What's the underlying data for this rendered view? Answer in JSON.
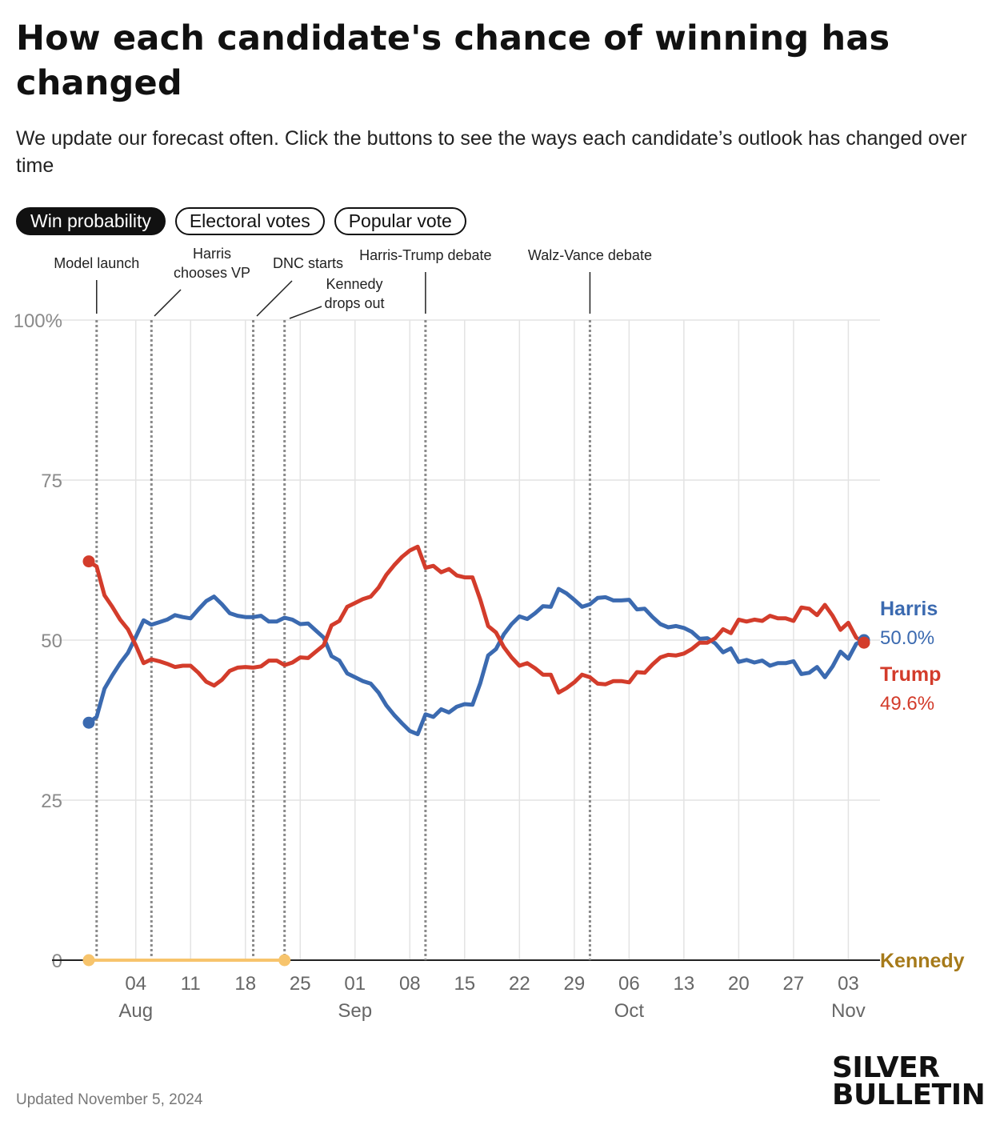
{
  "title": "How each candidate's chance of winning has changed",
  "subtitle": "We update our forecast often. Click the buttons to see the ways each candidate’s outlook has changed over time",
  "tabs": [
    {
      "label": "Win probability",
      "active": true
    },
    {
      "label": "Electoral votes",
      "active": false
    },
    {
      "label": "Popular vote",
      "active": false
    }
  ],
  "footer": {
    "updated": "Updated November 5, 2024"
  },
  "brand": {
    "line1": "SILVER",
    "line2": "BULLETIN"
  },
  "chart_data": {
    "type": "line",
    "ylim": [
      0,
      100
    ],
    "y_ticks": [
      {
        "value": 0,
        "label": "0"
      },
      {
        "value": 25,
        "label": "25"
      },
      {
        "value": 50,
        "label": "50"
      },
      {
        "value": 75,
        "label": "75"
      },
      {
        "value": 100,
        "label": "100%"
      }
    ],
    "x_range": [
      "2024-07-29",
      "2024-11-05"
    ],
    "x_ticks": [
      {
        "date": "2024-08-04",
        "label": "04",
        "month": "Aug"
      },
      {
        "date": "2024-08-11",
        "label": "11"
      },
      {
        "date": "2024-08-18",
        "label": "18"
      },
      {
        "date": "2024-08-25",
        "label": "25"
      },
      {
        "date": "2024-09-01",
        "label": "01",
        "month": "Sep"
      },
      {
        "date": "2024-09-08",
        "label": "08"
      },
      {
        "date": "2024-09-15",
        "label": "15"
      },
      {
        "date": "2024-09-22",
        "label": "22"
      },
      {
        "date": "2024-09-29",
        "label": "29"
      },
      {
        "date": "2024-10-06",
        "label": "06",
        "month": "Oct"
      },
      {
        "date": "2024-10-13",
        "label": "13"
      },
      {
        "date": "2024-10-20",
        "label": "20"
      },
      {
        "date": "2024-10-27",
        "label": "27"
      },
      {
        "date": "2024-11-03",
        "label": "03",
        "month": "Nov"
      }
    ],
    "grid": true,
    "legend": "right-end-labels",
    "events": [
      {
        "date": "2024-07-30",
        "lines": [
          "Model launch"
        ]
      },
      {
        "date": "2024-08-06",
        "lines": [
          "Harris",
          "chooses VP"
        ]
      },
      {
        "date": "2024-08-19",
        "lines": [
          "DNC starts"
        ]
      },
      {
        "date": "2024-08-23",
        "lines": [
          "Kennedy",
          "drops out"
        ]
      },
      {
        "date": "2024-09-10",
        "lines": [
          "Harris-Trump debate"
        ]
      },
      {
        "date": "2024-10-01",
        "lines": [
          "Walz-Vance debate"
        ]
      }
    ],
    "series": [
      {
        "name": "Harris",
        "color": "#3b6ab0",
        "end_label": "50.0%",
        "points": [
          [
            "2024-07-29",
            37.1
          ],
          [
            "2024-07-30",
            38.0
          ],
          [
            "2024-07-31",
            42.4
          ],
          [
            "2024-08-01",
            44.5
          ],
          [
            "2024-08-02",
            46.4
          ],
          [
            "2024-08-03",
            48.0
          ],
          [
            "2024-08-04",
            50.5
          ],
          [
            "2024-08-05",
            53.1
          ],
          [
            "2024-08-06",
            52.4
          ],
          [
            "2024-08-07",
            52.8
          ],
          [
            "2024-08-08",
            53.2
          ],
          [
            "2024-08-09",
            53.9
          ],
          [
            "2024-08-10",
            53.6
          ],
          [
            "2024-08-11",
            53.4
          ],
          [
            "2024-08-12",
            54.8
          ],
          [
            "2024-08-13",
            56.1
          ],
          [
            "2024-08-14",
            56.8
          ],
          [
            "2024-08-15",
            55.6
          ],
          [
            "2024-08-16",
            54.2
          ],
          [
            "2024-08-17",
            53.8
          ],
          [
            "2024-08-18",
            53.6
          ],
          [
            "2024-08-19",
            53.6
          ],
          [
            "2024-08-20",
            53.8
          ],
          [
            "2024-08-21",
            52.9
          ],
          [
            "2024-08-22",
            52.9
          ],
          [
            "2024-08-23",
            53.5
          ],
          [
            "2024-08-24",
            53.2
          ],
          [
            "2024-08-25",
            52.5
          ],
          [
            "2024-08-26",
            52.6
          ],
          [
            "2024-08-27",
            51.5
          ],
          [
            "2024-08-28",
            50.4
          ],
          [
            "2024-08-29",
            47.5
          ],
          [
            "2024-08-30",
            46.8
          ],
          [
            "2024-08-31",
            44.8
          ],
          [
            "2024-09-01",
            44.2
          ],
          [
            "2024-09-02",
            43.6
          ],
          [
            "2024-09-03",
            43.2
          ],
          [
            "2024-09-04",
            41.8
          ],
          [
            "2024-09-05",
            39.8
          ],
          [
            "2024-09-06",
            38.3
          ],
          [
            "2024-09-07",
            37.0
          ],
          [
            "2024-09-08",
            35.8
          ],
          [
            "2024-09-09",
            35.3
          ],
          [
            "2024-09-10",
            38.4
          ],
          [
            "2024-09-11",
            38.0
          ],
          [
            "2024-09-12",
            39.2
          ],
          [
            "2024-09-13",
            38.7
          ],
          [
            "2024-09-14",
            39.6
          ],
          [
            "2024-09-15",
            40.0
          ],
          [
            "2024-09-16",
            39.9
          ],
          [
            "2024-09-17",
            43.3
          ],
          [
            "2024-09-18",
            47.6
          ],
          [
            "2024-09-19",
            48.6
          ],
          [
            "2024-09-20",
            50.9
          ],
          [
            "2024-09-21",
            52.5
          ],
          [
            "2024-09-22",
            53.7
          ],
          [
            "2024-09-23",
            53.3
          ],
          [
            "2024-09-24",
            54.2
          ],
          [
            "2024-09-25",
            55.3
          ],
          [
            "2024-09-26",
            55.2
          ],
          [
            "2024-09-27",
            58.0
          ],
          [
            "2024-09-28",
            57.3
          ],
          [
            "2024-09-29",
            56.3
          ],
          [
            "2024-09-30",
            55.2
          ],
          [
            "2024-10-01",
            55.6
          ],
          [
            "2024-10-02",
            56.6
          ],
          [
            "2024-10-03",
            56.7
          ],
          [
            "2024-10-04",
            56.2
          ],
          [
            "2024-10-05",
            56.2
          ],
          [
            "2024-10-06",
            56.3
          ],
          [
            "2024-10-07",
            54.8
          ],
          [
            "2024-10-08",
            54.9
          ],
          [
            "2024-10-09",
            53.6
          ],
          [
            "2024-10-10",
            52.5
          ],
          [
            "2024-10-11",
            52.0
          ],
          [
            "2024-10-12",
            52.2
          ],
          [
            "2024-10-13",
            51.9
          ],
          [
            "2024-10-14",
            51.3
          ],
          [
            "2024-10-15",
            50.2
          ],
          [
            "2024-10-16",
            50.3
          ],
          [
            "2024-10-17",
            49.5
          ],
          [
            "2024-10-18",
            48.1
          ],
          [
            "2024-10-19",
            48.7
          ],
          [
            "2024-10-20",
            46.6
          ],
          [
            "2024-10-21",
            46.9
          ],
          [
            "2024-10-22",
            46.5
          ],
          [
            "2024-10-23",
            46.8
          ],
          [
            "2024-10-24",
            46.0
          ],
          [
            "2024-10-25",
            46.4
          ],
          [
            "2024-10-26",
            46.4
          ],
          [
            "2024-10-27",
            46.7
          ],
          [
            "2024-10-28",
            44.7
          ],
          [
            "2024-10-29",
            44.9
          ],
          [
            "2024-10-30",
            45.8
          ],
          [
            "2024-10-31",
            44.2
          ],
          [
            "2024-11-01",
            45.9
          ],
          [
            "2024-11-02",
            48.2
          ],
          [
            "2024-11-03",
            47.1
          ],
          [
            "2024-11-04",
            49.4
          ],
          [
            "2024-11-05",
            50.0
          ]
        ]
      },
      {
        "name": "Trump",
        "color": "#d33c2b",
        "end_label": "49.6%",
        "points": [
          [
            "2024-07-29",
            62.3
          ],
          [
            "2024-07-30",
            61.5
          ],
          [
            "2024-07-31",
            57.0
          ],
          [
            "2024-08-01",
            55.2
          ],
          [
            "2024-08-02",
            53.2
          ],
          [
            "2024-08-03",
            51.7
          ],
          [
            "2024-08-04",
            49.2
          ],
          [
            "2024-08-05",
            46.4
          ],
          [
            "2024-08-06",
            47.0
          ],
          [
            "2024-08-07",
            46.7
          ],
          [
            "2024-08-08",
            46.3
          ],
          [
            "2024-08-09",
            45.8
          ],
          [
            "2024-08-10",
            46.0
          ],
          [
            "2024-08-11",
            46.0
          ],
          [
            "2024-08-12",
            44.9
          ],
          [
            "2024-08-13",
            43.5
          ],
          [
            "2024-08-14",
            42.9
          ],
          [
            "2024-08-15",
            43.8
          ],
          [
            "2024-08-16",
            45.2
          ],
          [
            "2024-08-17",
            45.7
          ],
          [
            "2024-08-18",
            45.8
          ],
          [
            "2024-08-19",
            45.7
          ],
          [
            "2024-08-20",
            45.9
          ],
          [
            "2024-08-21",
            46.8
          ],
          [
            "2024-08-22",
            46.8
          ],
          [
            "2024-08-23",
            46.1
          ],
          [
            "2024-08-24",
            46.5
          ],
          [
            "2024-08-25",
            47.3
          ],
          [
            "2024-08-26",
            47.2
          ],
          [
            "2024-08-27",
            48.2
          ],
          [
            "2024-08-28",
            49.2
          ],
          [
            "2024-08-29",
            52.3
          ],
          [
            "2024-08-30",
            53.0
          ],
          [
            "2024-08-31",
            55.2
          ],
          [
            "2024-09-01",
            55.8
          ],
          [
            "2024-09-02",
            56.4
          ],
          [
            "2024-09-03",
            56.8
          ],
          [
            "2024-09-04",
            58.2
          ],
          [
            "2024-09-05",
            60.2
          ],
          [
            "2024-09-06",
            61.7
          ],
          [
            "2024-09-07",
            63.0
          ],
          [
            "2024-09-08",
            64.0
          ],
          [
            "2024-09-09",
            64.6
          ],
          [
            "2024-09-10",
            61.3
          ],
          [
            "2024-09-11",
            61.6
          ],
          [
            "2024-09-12",
            60.6
          ],
          [
            "2024-09-13",
            61.1
          ],
          [
            "2024-09-14",
            60.1
          ],
          [
            "2024-09-15",
            59.8
          ],
          [
            "2024-09-16",
            59.8
          ],
          [
            "2024-09-17",
            56.3
          ],
          [
            "2024-09-18",
            52.2
          ],
          [
            "2024-09-19",
            51.2
          ],
          [
            "2024-09-20",
            48.9
          ],
          [
            "2024-09-21",
            47.3
          ],
          [
            "2024-09-22",
            46.0
          ],
          [
            "2024-09-23",
            46.4
          ],
          [
            "2024-09-24",
            45.6
          ],
          [
            "2024-09-25",
            44.6
          ],
          [
            "2024-09-26",
            44.6
          ],
          [
            "2024-09-27",
            41.8
          ],
          [
            "2024-09-28",
            42.5
          ],
          [
            "2024-09-29",
            43.4
          ],
          [
            "2024-09-30",
            44.6
          ],
          [
            "2024-10-01",
            44.2
          ],
          [
            "2024-10-02",
            43.2
          ],
          [
            "2024-10-03",
            43.1
          ],
          [
            "2024-10-04",
            43.6
          ],
          [
            "2024-10-05",
            43.6
          ],
          [
            "2024-10-06",
            43.4
          ],
          [
            "2024-10-07",
            45.0
          ],
          [
            "2024-10-08",
            44.9
          ],
          [
            "2024-10-09",
            46.2
          ],
          [
            "2024-10-10",
            47.3
          ],
          [
            "2024-10-11",
            47.7
          ],
          [
            "2024-10-12",
            47.6
          ],
          [
            "2024-10-13",
            47.9
          ],
          [
            "2024-10-14",
            48.6
          ],
          [
            "2024-10-15",
            49.6
          ],
          [
            "2024-10-16",
            49.6
          ],
          [
            "2024-10-17",
            50.3
          ],
          [
            "2024-10-18",
            51.7
          ],
          [
            "2024-10-19",
            51.1
          ],
          [
            "2024-10-20",
            53.2
          ],
          [
            "2024-10-21",
            52.9
          ],
          [
            "2024-10-22",
            53.2
          ],
          [
            "2024-10-23",
            53.0
          ],
          [
            "2024-10-24",
            53.8
          ],
          [
            "2024-10-25",
            53.4
          ],
          [
            "2024-10-26",
            53.4
          ],
          [
            "2024-10-27",
            53.0
          ],
          [
            "2024-10-28",
            55.1
          ],
          [
            "2024-10-29",
            54.9
          ],
          [
            "2024-10-30",
            53.9
          ],
          [
            "2024-10-31",
            55.5
          ],
          [
            "2024-11-01",
            53.8
          ],
          [
            "2024-11-02",
            51.6
          ],
          [
            "2024-11-03",
            52.7
          ],
          [
            "2024-11-04",
            50.4
          ],
          [
            "2024-11-05",
            49.6
          ]
        ]
      },
      {
        "name": "Kennedy",
        "color": "#f7c46c",
        "points": [
          [
            "2024-07-29",
            0.0
          ],
          [
            "2024-08-23",
            0.0
          ]
        ]
      }
    ]
  }
}
